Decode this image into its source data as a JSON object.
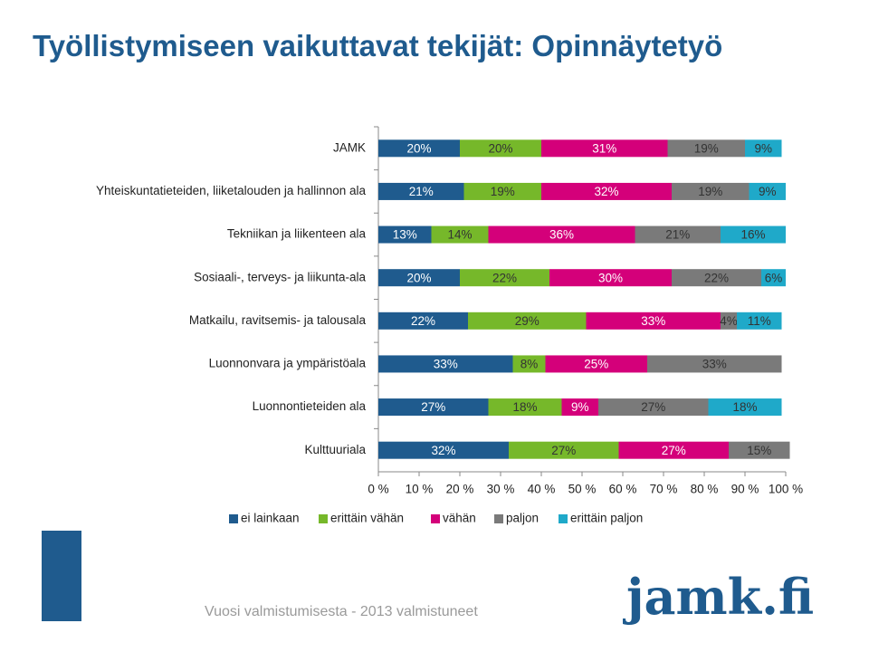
{
  "chart_data": {
    "type": "stacked_barh",
    "title": "Työllistymiseen vaikuttavat tekijät: Opinnäytetyö",
    "categories": [
      "JAMK",
      "Yhteiskuntatieteiden, liiketalouden ja hallinnon ala",
      "Tekniikan ja liikenteen ala",
      "Sosiaali-, terveys- ja liikunta-ala",
      "Matkailu, ravitsemis- ja talousala",
      "Luonnonvara ja ympäristöala",
      "Luonnontieteiden ala",
      "Kulttuuriala"
    ],
    "series": [
      {
        "name": "ei lainkaan",
        "color": "#1f5b8e",
        "values": [
          20,
          21,
          13,
          20,
          22,
          33,
          27,
          32
        ],
        "value_labels": [
          "20%",
          "21%",
          "13%",
          "20%",
          "22%",
          "33%",
          "27%",
          "32%"
        ]
      },
      {
        "name": "erittäin vähän",
        "color": "#76b82a",
        "values": [
          20,
          19,
          14,
          22,
          29,
          8,
          18,
          27
        ],
        "value_labels": [
          "20%",
          "19%",
          "14%",
          "22%",
          "29%",
          "8%",
          "18%",
          "27%"
        ]
      },
      {
        "name": "vähän",
        "color": "#d4007a",
        "values": [
          31,
          32,
          36,
          30,
          33,
          25,
          9,
          27
        ],
        "value_labels": [
          "31%",
          "32%",
          "36%",
          "30%",
          "33%",
          "25%",
          "9%",
          "27%"
        ]
      },
      {
        "name": "paljon",
        "color": "#7a7a7a",
        "values": [
          19,
          19,
          21,
          22,
          4,
          33,
          27,
          15
        ],
        "value_labels": [
          "19%",
          "19%",
          "21%",
          "22%",
          "4%",
          "33%",
          "27%",
          "15%"
        ]
      },
      {
        "name": "erittäin paljon",
        "color": "#1fa9c9",
        "values": [
          9,
          9,
          16,
          6,
          11,
          null,
          18,
          null
        ],
        "value_labels": [
          "9%",
          "9%",
          "16%",
          "6%",
          "11%",
          null,
          "18%",
          null
        ]
      }
    ],
    "xlim": [
      0,
      100
    ],
    "xticks": [
      {
        "value": 0,
        "label": "0 %"
      },
      {
        "value": 10,
        "label": "10 %"
      },
      {
        "value": 20,
        "label": "20 %"
      },
      {
        "value": 30,
        "label": "30 %"
      },
      {
        "value": 40,
        "label": "40 %"
      },
      {
        "value": 50,
        "label": "50 %"
      },
      {
        "value": 60,
        "label": "60 %"
      },
      {
        "value": 70,
        "label": "70 %"
      },
      {
        "value": 80,
        "label": "80 %"
      },
      {
        "value": 90,
        "label": "90 %"
      },
      {
        "value": 100,
        "label": "100 %"
      }
    ],
    "legend": "bottom"
  },
  "footer": "Vuosi valmistumisesta - 2013 valmistuneet",
  "logo": "jamk.fi"
}
